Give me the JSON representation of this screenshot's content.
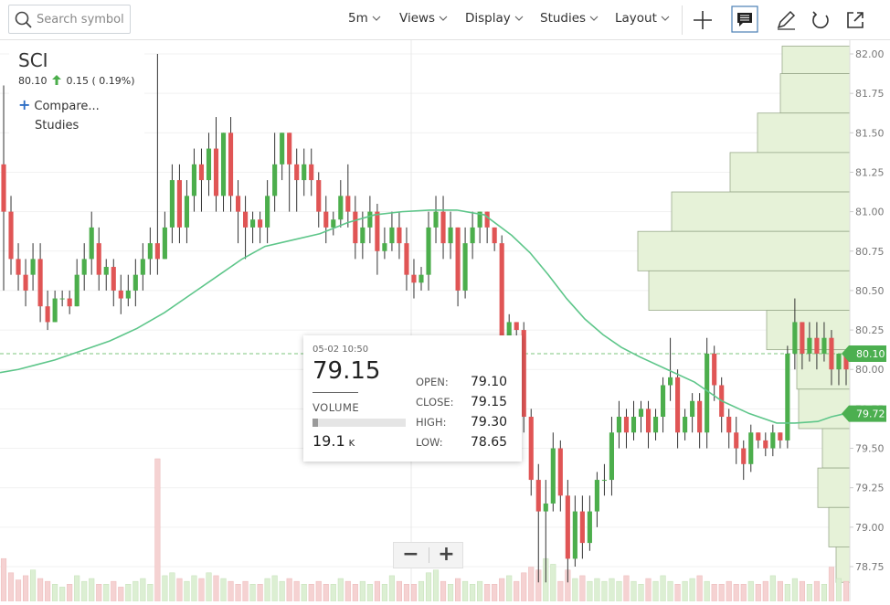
{
  "toolbar": {
    "search_placeholder": "Search symbol",
    "interval": "5m",
    "views": "Views",
    "display": "Display",
    "studies": "Studies",
    "layout": "Layout"
  },
  "legend": {
    "symbol": "SCI",
    "price": "80.10",
    "change": "0.15",
    "change_pct": "( 0.19%)",
    "compare": "Compare...",
    "studies": "Studies"
  },
  "tooltip": {
    "date": "05-02 10:50",
    "close_big": "79.15",
    "volume_label": "VOLUME",
    "volume_fraction": 0.06,
    "volume_value": "19.1",
    "volume_unit": "K",
    "rows": [
      {
        "label": "OPEN:",
        "value": "79.10"
      },
      {
        "label": "CLOSE:",
        "value": "79.15"
      },
      {
        "label": "HIGH:",
        "value": "79.30"
      },
      {
        "label": "LOW:",
        "value": "78.65"
      }
    ]
  },
  "zoom": {
    "minus": "−",
    "plus": "+"
  },
  "colors": {
    "up": "#4cae4c",
    "down": "#e05555",
    "ma": "#5ec68a",
    "profile_fill": "#e6f2d8",
    "profile_stroke": "#9aaa8c",
    "axis_text": "#777777",
    "price_tag": "#4caf50"
  },
  "chart_data": {
    "type": "candlestick",
    "y_ticks": [
      "82.00",
      "81.75",
      "81.50",
      "81.25",
      "81.00",
      "80.75",
      "80.50",
      "80.25",
      "80.00",
      "79.75",
      "79.50",
      "79.25",
      "79.00",
      "78.75"
    ],
    "ylim": [
      78.65,
      82.05
    ],
    "current_price_label": "80.10",
    "current_price": 80.1,
    "ma_label": "79.72",
    "ma_last": 79.72,
    "volume_max": 100,
    "candles": [
      [
        81.3,
        81.0,
        81.8,
        80.5
      ],
      [
        81.0,
        80.7,
        81.1,
        80.6
      ],
      [
        80.7,
        80.6,
        80.8,
        80.5
      ],
      [
        80.6,
        80.5,
        80.7,
        80.4
      ],
      [
        80.6,
        80.7,
        80.8,
        80.5
      ],
      [
        80.7,
        80.4,
        80.8,
        80.3
      ],
      [
        80.4,
        80.3,
        80.5,
        80.25
      ],
      [
        80.3,
        80.45,
        80.5,
        80.3
      ],
      [
        80.45,
        80.45,
        80.5,
        80.4
      ],
      [
        80.45,
        80.4,
        80.5,
        80.35
      ],
      [
        80.4,
        80.6,
        80.7,
        80.4
      ],
      [
        80.6,
        80.7,
        80.8,
        80.5
      ],
      [
        80.7,
        80.9,
        81.0,
        80.6
      ],
      [
        80.8,
        80.6,
        80.9,
        80.5
      ],
      [
        80.6,
        80.65,
        80.7,
        80.5
      ],
      [
        80.65,
        80.5,
        80.7,
        80.4
      ],
      [
        80.5,
        80.45,
        80.6,
        80.35
      ],
      [
        80.45,
        80.5,
        80.6,
        80.4
      ],
      [
        80.5,
        80.6,
        80.7,
        80.4
      ],
      [
        80.6,
        80.7,
        80.8,
        80.5
      ],
      [
        80.7,
        80.8,
        80.9,
        80.6
      ],
      [
        80.8,
        80.7,
        82.0,
        80.6
      ],
      [
        80.7,
        80.9,
        81.0,
        80.7
      ],
      [
        80.9,
        81.2,
        81.3,
        80.8
      ],
      [
        81.2,
        80.9,
        81.3,
        80.8
      ],
      [
        80.9,
        81.1,
        81.2,
        80.8
      ],
      [
        81.1,
        81.3,
        81.4,
        81.0
      ],
      [
        81.3,
        81.2,
        81.4,
        81.0
      ],
      [
        81.2,
        81.4,
        81.5,
        81.1
      ],
      [
        81.4,
        81.1,
        81.6,
        81.0
      ],
      [
        81.1,
        81.5,
        81.5,
        81.0
      ],
      [
        81.5,
        81.1,
        81.6,
        81.0
      ],
      [
        81.1,
        81.0,
        81.2,
        80.8
      ],
      [
        81.0,
        80.9,
        81.1,
        80.7
      ],
      [
        80.9,
        80.95,
        81.0,
        80.8
      ],
      [
        80.95,
        80.9,
        81.0,
        80.8
      ],
      [
        80.9,
        81.1,
        81.2,
        80.8
      ],
      [
        81.1,
        81.3,
        81.5,
        81.0
      ],
      [
        81.3,
        81.5,
        81.5,
        81.2
      ],
      [
        81.5,
        81.3,
        81.5,
        81.0
      ],
      [
        81.3,
        81.2,
        81.4,
        81.0
      ],
      [
        81.2,
        81.3,
        81.4,
        81.1
      ],
      [
        81.3,
        81.2,
        81.4,
        81.1
      ],
      [
        81.2,
        81.0,
        81.25,
        80.9
      ],
      [
        81.0,
        80.9,
        81.1,
        80.8
      ],
      [
        80.9,
        80.95,
        81.0,
        80.85
      ],
      [
        80.95,
        81.1,
        81.2,
        80.9
      ],
      [
        81.1,
        81.0,
        81.3,
        80.9
      ],
      [
        81.0,
        80.8,
        81.1,
        80.7
      ],
      [
        80.8,
        80.9,
        81.0,
        80.7
      ],
      [
        80.9,
        81.0,
        81.1,
        80.8
      ],
      [
        81.0,
        80.75,
        81.05,
        80.6
      ],
      [
        80.75,
        80.8,
        80.9,
        80.7
      ],
      [
        80.8,
        80.9,
        81.0,
        80.75
      ],
      [
        80.9,
        80.8,
        81.0,
        80.7
      ],
      [
        80.8,
        80.6,
        80.9,
        80.5
      ],
      [
        80.6,
        80.55,
        80.7,
        80.45
      ],
      [
        80.55,
        80.6,
        80.65,
        80.5
      ],
      [
        80.6,
        80.9,
        81.0,
        80.5
      ],
      [
        80.9,
        81.0,
        81.1,
        80.8
      ],
      [
        81.0,
        80.8,
        81.1,
        80.7
      ],
      [
        80.8,
        80.9,
        81.0,
        80.7
      ],
      [
        80.9,
        80.5,
        80.9,
        80.4
      ],
      [
        80.5,
        80.8,
        80.9,
        80.45
      ],
      [
        80.8,
        80.9,
        81.0,
        80.7
      ],
      [
        80.9,
        81.0,
        81.0,
        80.8
      ],
      [
        81.0,
        80.9,
        81.0,
        80.8
      ],
      [
        80.9,
        80.8,
        80.9,
        80.75
      ],
      [
        80.8,
        80.2,
        80.85,
        80.1
      ],
      [
        80.2,
        80.3,
        80.35,
        80.2
      ],
      [
        80.3,
        80.25,
        80.3,
        80.15
      ],
      [
        80.25,
        79.7,
        80.3,
        79.6
      ],
      [
        79.7,
        79.3,
        79.75,
        79.2
      ],
      [
        79.3,
        79.1,
        79.4,
        78.65
      ],
      [
        79.1,
        79.15,
        79.3,
        78.65
      ],
      [
        79.15,
        79.5,
        79.6,
        79.1
      ],
      [
        79.5,
        79.2,
        79.55,
        79.1
      ],
      [
        79.2,
        78.8,
        79.3,
        78.65
      ],
      [
        78.8,
        79.1,
        79.2,
        78.75
      ],
      [
        79.1,
        78.9,
        79.2,
        78.8
      ],
      [
        78.9,
        79.1,
        79.2,
        78.85
      ],
      [
        79.1,
        79.3,
        79.35,
        79.0
      ],
      [
        79.3,
        79.3,
        79.4,
        79.2
      ],
      [
        79.3,
        79.6,
        79.7,
        79.2
      ],
      [
        79.6,
        79.7,
        79.8,
        79.5
      ],
      [
        79.7,
        79.6,
        79.75,
        79.5
      ],
      [
        79.6,
        79.7,
        79.8,
        79.55
      ],
      [
        79.7,
        79.75,
        79.8,
        79.6
      ],
      [
        79.75,
        79.6,
        79.8,
        79.5
      ],
      [
        79.6,
        79.7,
        79.75,
        79.55
      ],
      [
        79.7,
        79.9,
        79.95,
        79.6
      ],
      [
        79.9,
        79.95,
        80.2,
        79.8
      ],
      [
        79.95,
        79.6,
        80.0,
        79.5
      ],
      [
        79.6,
        79.7,
        79.75,
        79.55
      ],
      [
        79.7,
        79.8,
        79.85,
        79.6
      ],
      [
        79.8,
        79.6,
        79.85,
        79.5
      ],
      [
        79.6,
        80.1,
        80.2,
        79.5
      ],
      [
        80.1,
        79.9,
        80.15,
        79.8
      ],
      [
        79.9,
        79.7,
        79.95,
        79.6
      ],
      [
        79.7,
        79.6,
        79.75,
        79.5
      ],
      [
        79.6,
        79.5,
        79.7,
        79.4
      ],
      [
        79.5,
        79.4,
        79.55,
        79.3
      ],
      [
        79.4,
        79.6,
        79.65,
        79.35
      ],
      [
        79.6,
        79.55,
        79.6,
        79.5
      ],
      [
        79.55,
        79.5,
        79.6,
        79.45
      ],
      [
        79.5,
        79.6,
        79.65,
        79.45
      ],
      [
        79.6,
        79.55,
        79.6,
        79.5
      ],
      [
        79.55,
        80.1,
        80.15,
        79.5
      ],
      [
        80.1,
        80.3,
        80.45,
        80.0
      ],
      [
        80.3,
        80.1,
        80.3,
        80.0
      ],
      [
        80.1,
        80.2,
        80.3,
        80.05
      ],
      [
        80.2,
        80.1,
        80.3,
        80.0
      ],
      [
        80.1,
        80.2,
        80.3,
        80.05
      ],
      [
        80.2,
        80.0,
        80.25,
        79.9
      ],
      [
        80.0,
        80.1,
        80.1,
        79.9
      ],
      [
        80.1,
        80.0,
        80.1,
        79.9
      ]
    ],
    "ma": [
      [
        0,
        79.98
      ],
      [
        20,
        80.0
      ],
      [
        40,
        80.03
      ],
      [
        60,
        80.06
      ],
      [
        90,
        80.12
      ],
      [
        120,
        80.18
      ],
      [
        150,
        80.26
      ],
      [
        180,
        80.36
      ],
      [
        210,
        80.48
      ],
      [
        240,
        80.6
      ],
      [
        265,
        80.7
      ],
      [
        290,
        80.78
      ],
      [
        320,
        80.82
      ],
      [
        350,
        80.86
      ],
      [
        380,
        80.93
      ],
      [
        410,
        80.98
      ],
      [
        440,
        81.0
      ],
      [
        470,
        81.01
      ],
      [
        500,
        81.01
      ],
      [
        530,
        80.98
      ],
      [
        560,
        80.85
      ],
      [
        580,
        80.74
      ],
      [
        600,
        80.6
      ],
      [
        620,
        80.45
      ],
      [
        640,
        80.32
      ],
      [
        660,
        80.22
      ],
      [
        680,
        80.14
      ],
      [
        700,
        80.08
      ],
      [
        730,
        80.0
      ],
      [
        760,
        79.92
      ],
      [
        790,
        79.8
      ],
      [
        820,
        79.72
      ],
      [
        850,
        79.66
      ],
      [
        870,
        79.66
      ],
      [
        895,
        79.67
      ],
      [
        910,
        79.7
      ],
      [
        925,
        79.72
      ]
    ],
    "volume_profile": [
      [
        82.05,
        81.875,
        74
      ],
      [
        81.875,
        81.625,
        76
      ],
      [
        81.625,
        81.375,
        101
      ],
      [
        81.375,
        81.125,
        131
      ],
      [
        81.125,
        80.875,
        195
      ],
      [
        80.875,
        80.625,
        232
      ],
      [
        80.625,
        80.375,
        220
      ],
      [
        80.375,
        80.125,
        91
      ],
      [
        80.125,
        79.875,
        58
      ],
      [
        79.875,
        79.625,
        56
      ],
      [
        79.625,
        79.375,
        30
      ],
      [
        79.375,
        79.125,
        35
      ],
      [
        79.125,
        78.875,
        23
      ],
      [
        78.875,
        78.65,
        15
      ]
    ],
    "volumes": [
      30,
      20,
      15,
      18,
      22,
      16,
      14,
      12,
      10,
      12,
      18,
      14,
      16,
      12,
      12,
      14,
      10,
      12,
      14,
      16,
      12,
      100,
      18,
      20,
      16,
      14,
      18,
      16,
      20,
      18,
      16,
      14,
      12,
      14,
      12,
      12,
      16,
      18,
      14,
      16,
      14,
      12,
      12,
      14,
      12,
      12,
      16,
      14,
      12,
      14,
      12,
      14,
      12,
      18,
      14,
      12,
      12,
      14,
      20,
      22,
      14,
      12,
      16,
      14,
      12,
      14,
      12,
      12,
      16,
      18,
      14,
      20,
      24,
      22,
      30,
      26,
      14,
      22,
      16,
      18,
      14,
      16,
      14,
      16,
      14,
      18,
      14,
      12,
      16,
      14,
      18,
      14,
      12,
      14,
      16,
      18,
      14,
      12,
      12,
      14,
      12,
      12,
      14,
      12,
      14,
      18,
      14,
      12,
      16,
      14,
      12,
      14,
      12,
      24,
      16,
      14,
      14,
      12
    ]
  }
}
